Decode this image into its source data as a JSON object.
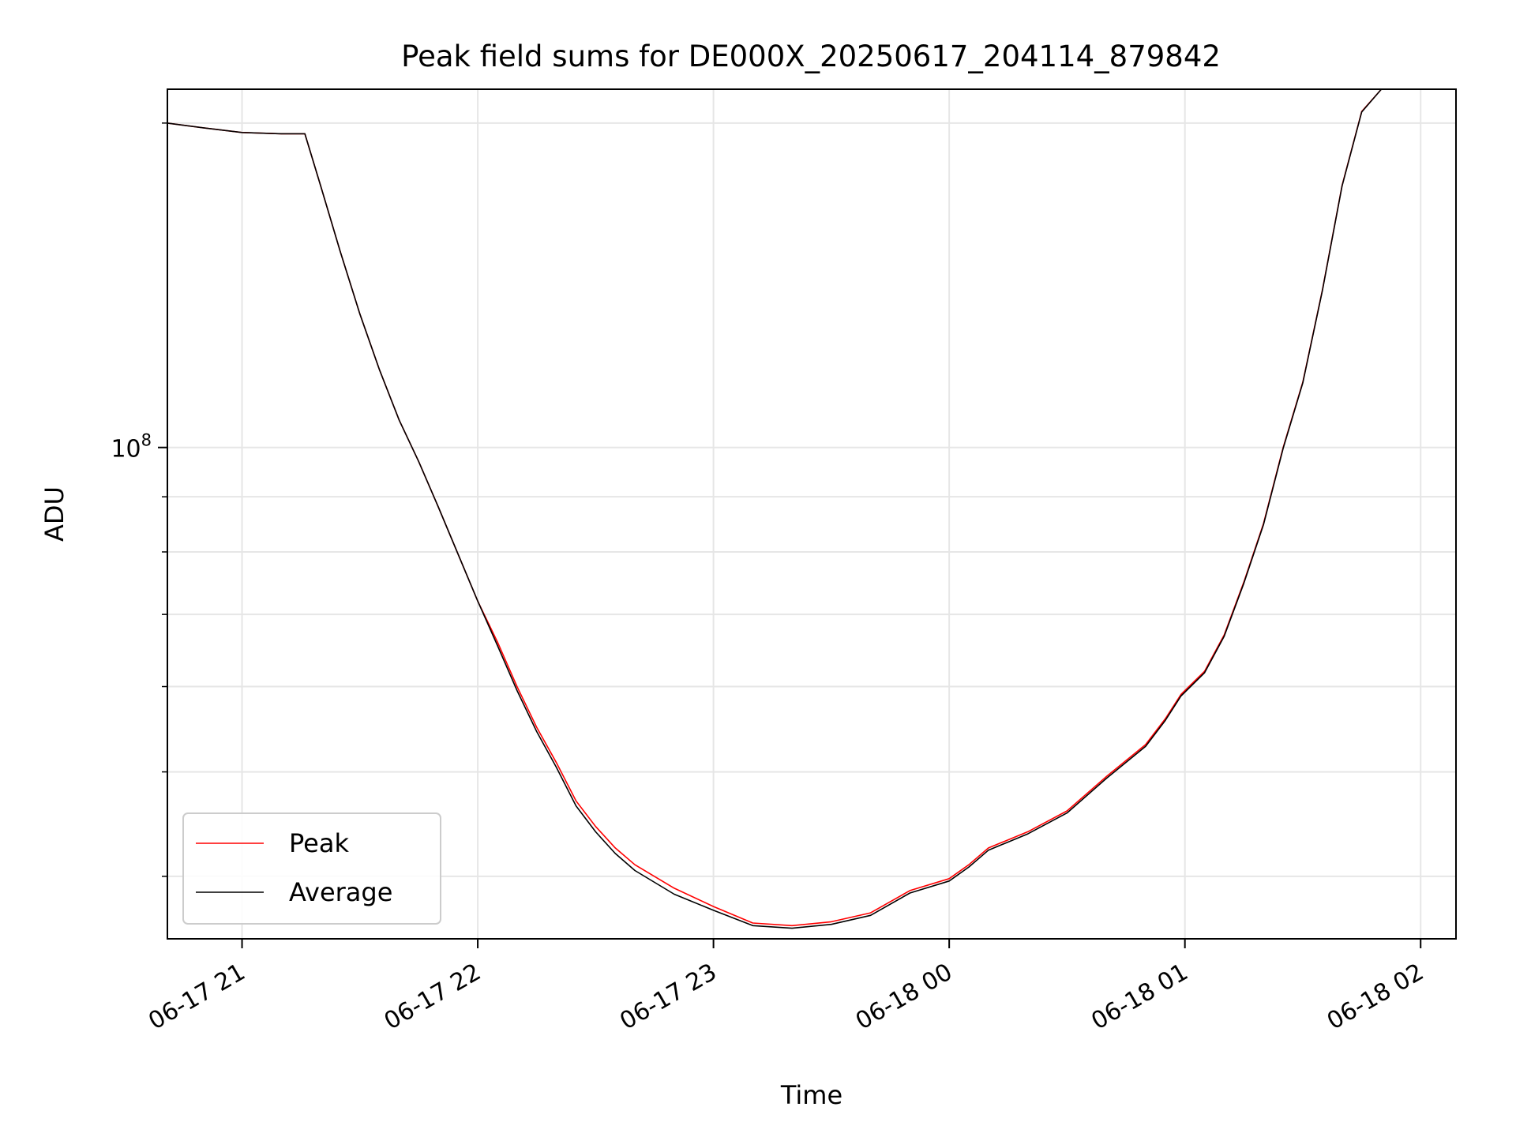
{
  "chart_data": {
    "type": "line",
    "title": "Peak field sums for DE000X_20250617_204114_879842",
    "xlabel": "Time",
    "ylabel": "ADU",
    "xlim": [
      "2025-06-17 20:41",
      "2025-06-18 02:09"
    ],
    "ylim": [
      35000000,
      215000000
    ],
    "yscale": "log",
    "grid": true,
    "legend_position": "lower-left",
    "x_ticks": [
      {
        "time": "2025-06-17 21:00",
        "label": "06-17 21"
      },
      {
        "time": "2025-06-17 22:00",
        "label": "06-17 22"
      },
      {
        "time": "2025-06-17 23:00",
        "label": "06-17 23"
      },
      {
        "time": "2025-06-18 00:00",
        "label": "06-18 00"
      },
      {
        "time": "2025-06-18 01:00",
        "label": "06-18 01"
      },
      {
        "time": "2025-06-18 02:00",
        "label": "06-18 02"
      }
    ],
    "y_major_ticks": [
      {
        "value": 100000000,
        "base": "10",
        "exp": "8"
      }
    ],
    "y_minor_ticks": [
      40000000,
      50000000,
      60000000,
      70000000,
      80000000,
      90000000,
      200000000
    ],
    "colors": {
      "peak": "#ff0000",
      "average": "#000000",
      "grid": "#e6e6e6"
    },
    "series": [
      {
        "name": "Peak",
        "color": "#ff0000",
        "points": [
          [
            "2025-06-17 20:41",
            200000000
          ],
          [
            "2025-06-17 20:50",
            198000000
          ],
          [
            "2025-06-17 21:00",
            196000000
          ],
          [
            "2025-06-17 21:10",
            195500000
          ],
          [
            "2025-06-17 21:16",
            195500000
          ],
          [
            "2025-06-17 21:20",
            175000000
          ],
          [
            "2025-06-17 21:25",
            152000000
          ],
          [
            "2025-06-17 21:30",
            133000000
          ],
          [
            "2025-06-17 21:35",
            118000000
          ],
          [
            "2025-06-17 21:40",
            106000000
          ],
          [
            "2025-06-17 21:45",
            97000000
          ],
          [
            "2025-06-17 21:50",
            88000000
          ],
          [
            "2025-06-17 22:00",
            72000000
          ],
          [
            "2025-06-17 22:05",
            66000000
          ],
          [
            "2025-06-17 22:10",
            60000000
          ],
          [
            "2025-06-17 22:15",
            55000000
          ],
          [
            "2025-06-17 22:20",
            51000000
          ],
          [
            "2025-06-17 22:25",
            47000000
          ],
          [
            "2025-06-17 22:30",
            44500000
          ],
          [
            "2025-06-17 22:35",
            42500000
          ],
          [
            "2025-06-17 22:40",
            41000000
          ],
          [
            "2025-06-17 22:50",
            39000000
          ],
          [
            "2025-06-17 23:00",
            37500000
          ],
          [
            "2025-06-17 23:10",
            36200000
          ],
          [
            "2025-06-17 23:20",
            36000000
          ],
          [
            "2025-06-17 23:30",
            36300000
          ],
          [
            "2025-06-17 23:40",
            37000000
          ],
          [
            "2025-06-17 23:50",
            38800000
          ],
          [
            "2025-06-18 00:00",
            39800000
          ],
          [
            "2025-06-18 00:05",
            41000000
          ],
          [
            "2025-06-18 00:10",
            42500000
          ],
          [
            "2025-06-18 00:20",
            44000000
          ],
          [
            "2025-06-18 00:30",
            46000000
          ],
          [
            "2025-06-18 00:40",
            49500000
          ],
          [
            "2025-06-18 00:50",
            53000000
          ],
          [
            "2025-06-18 00:55",
            56000000
          ],
          [
            "2025-06-18 00:59",
            59000000
          ],
          [
            "2025-06-18 01:05",
            62000000
          ],
          [
            "2025-06-18 01:10",
            67000000
          ],
          [
            "2025-06-18 01:15",
            75000000
          ],
          [
            "2025-06-18 01:20",
            85000000
          ],
          [
            "2025-06-18 01:25",
            100000000
          ],
          [
            "2025-06-18 01:30",
            115000000
          ],
          [
            "2025-06-18 01:35",
            140000000
          ],
          [
            "2025-06-18 01:40",
            175000000
          ],
          [
            "2025-06-18 01:45",
            205000000
          ],
          [
            "2025-06-18 01:50",
            215000000
          ],
          [
            "2025-06-18 02:09",
            215000000
          ]
        ]
      },
      {
        "name": "Average",
        "color": "#000000",
        "points": [
          [
            "2025-06-17 20:41",
            200000000
          ],
          [
            "2025-06-17 20:50",
            198000000
          ],
          [
            "2025-06-17 21:00",
            196000000
          ],
          [
            "2025-06-17 21:10",
            195500000
          ],
          [
            "2025-06-17 21:16",
            195500000
          ],
          [
            "2025-06-17 21:20",
            175000000
          ],
          [
            "2025-06-17 21:25",
            152000000
          ],
          [
            "2025-06-17 21:30",
            133000000
          ],
          [
            "2025-06-17 21:35",
            118000000
          ],
          [
            "2025-06-17 21:40",
            106000000
          ],
          [
            "2025-06-17 21:45",
            97000000
          ],
          [
            "2025-06-17 21:50",
            88000000
          ],
          [
            "2025-06-17 22:00",
            72000000
          ],
          [
            "2025-06-17 22:05",
            65500000
          ],
          [
            "2025-06-17 22:10",
            59500000
          ],
          [
            "2025-06-17 22:15",
            54500000
          ],
          [
            "2025-06-17 22:20",
            50500000
          ],
          [
            "2025-06-17 22:25",
            46500000
          ],
          [
            "2025-06-17 22:30",
            44000000
          ],
          [
            "2025-06-17 22:35",
            42000000
          ],
          [
            "2025-06-17 22:40",
            40500000
          ],
          [
            "2025-06-17 22:50",
            38500000
          ],
          [
            "2025-06-17 23:00",
            37200000
          ],
          [
            "2025-06-17 23:10",
            36000000
          ],
          [
            "2025-06-17 23:20",
            35800000
          ],
          [
            "2025-06-17 23:30",
            36100000
          ],
          [
            "2025-06-17 23:40",
            36800000
          ],
          [
            "2025-06-17 23:50",
            38600000
          ],
          [
            "2025-06-18 00:00",
            39600000
          ],
          [
            "2025-06-18 00:05",
            40800000
          ],
          [
            "2025-06-18 00:10",
            42300000
          ],
          [
            "2025-06-18 00:20",
            43800000
          ],
          [
            "2025-06-18 00:30",
            45800000
          ],
          [
            "2025-06-18 00:40",
            49300000
          ],
          [
            "2025-06-18 00:50",
            52800000
          ],
          [
            "2025-06-18 00:55",
            55800000
          ],
          [
            "2025-06-18 00:59",
            58800000
          ],
          [
            "2025-06-18 01:05",
            61800000
          ],
          [
            "2025-06-18 01:10",
            66800000
          ],
          [
            "2025-06-18 01:15",
            74800000
          ],
          [
            "2025-06-18 01:20",
            84800000
          ],
          [
            "2025-06-18 01:25",
            99800000
          ],
          [
            "2025-06-18 01:30",
            114800000
          ],
          [
            "2025-06-18 01:35",
            139800000
          ],
          [
            "2025-06-18 01:40",
            174800000
          ],
          [
            "2025-06-18 01:45",
            204800000
          ],
          [
            "2025-06-18 01:50",
            215000000
          ],
          [
            "2025-06-18 02:09",
            215000000
          ]
        ]
      }
    ]
  }
}
